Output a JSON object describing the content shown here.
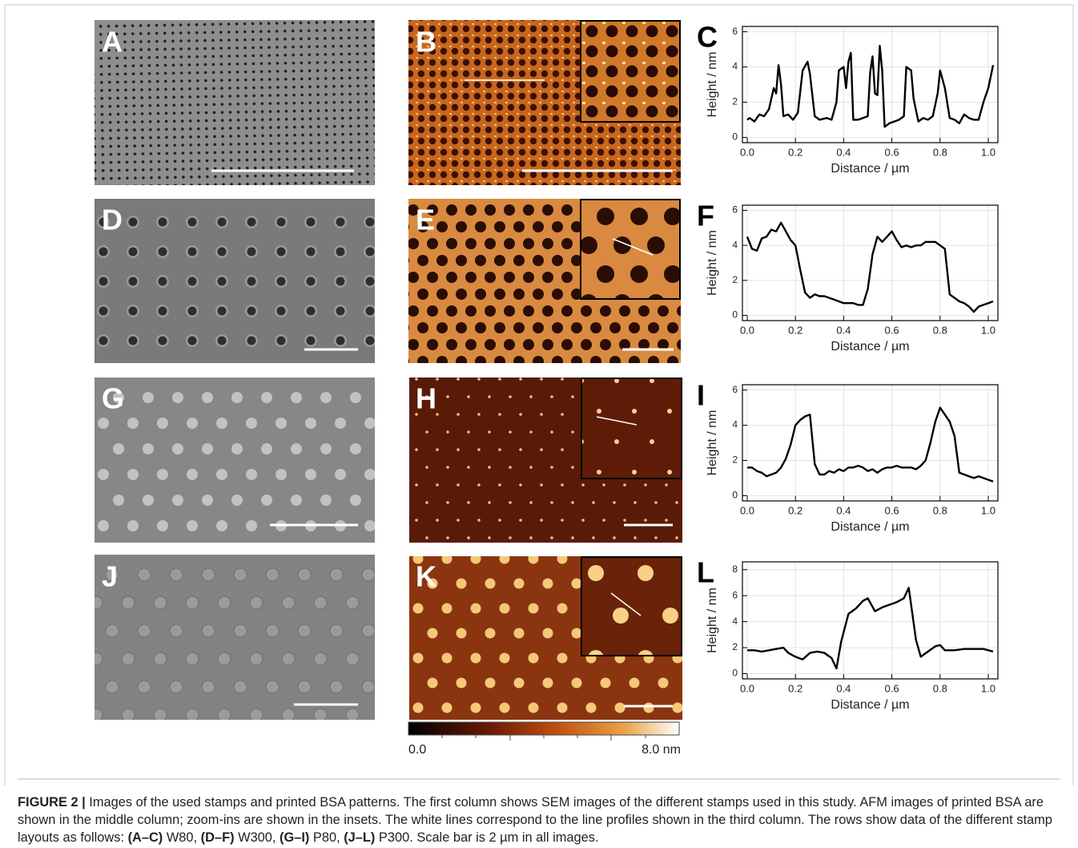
{
  "panels": [
    {
      "label": "A"
    },
    {
      "label": "B"
    },
    {
      "label": "D"
    },
    {
      "label": "E"
    },
    {
      "label": "G"
    },
    {
      "label": "H"
    },
    {
      "label": "J"
    },
    {
      "label": "K"
    }
  ],
  "colorbar": {
    "min_label": "0.0",
    "max_label": "8.0 nm"
  },
  "chart_data": [
    {
      "type": "line",
      "label": "C",
      "xlabel": "Distance / µm",
      "ylabel": "Height / nm",
      "grid": true,
      "x": [
        0,
        0.01,
        0.03,
        0.05,
        0.07,
        0.09,
        0.11,
        0.12,
        0.13,
        0.14,
        0.15,
        0.17,
        0.19,
        0.21,
        0.23,
        0.25,
        0.26,
        0.28,
        0.3,
        0.33,
        0.35,
        0.37,
        0.38,
        0.4,
        0.41,
        0.42,
        0.43,
        0.44,
        0.46,
        0.48,
        0.5,
        0.51,
        0.52,
        0.53,
        0.54,
        0.55,
        0.56,
        0.57,
        0.59,
        0.61,
        0.63,
        0.65,
        0.66,
        0.68,
        0.69,
        0.71,
        0.73,
        0.75,
        0.77,
        0.79,
        0.8,
        0.82,
        0.84,
        0.86,
        0.88,
        0.9,
        0.92,
        0.94,
        0.96,
        0.98,
        1.0,
        1.02
      ],
      "series": [
        {
          "color": "#000000",
          "values": [
            1.0,
            1.1,
            0.9,
            1.3,
            1.2,
            1.6,
            2.8,
            2.5,
            4.1,
            3.0,
            1.2,
            1.3,
            1.0,
            1.4,
            3.8,
            4.3,
            3.6,
            1.2,
            1.0,
            1.1,
            1.0,
            2.0,
            3.8,
            4.0,
            2.8,
            4.3,
            4.8,
            1.0,
            1.0,
            1.1,
            1.2,
            3.7,
            4.6,
            2.5,
            2.4,
            5.2,
            3.8,
            0.6,
            0.8,
            0.9,
            1.0,
            1.2,
            4.0,
            3.8,
            2.2,
            0.9,
            1.1,
            1.0,
            1.2,
            2.5,
            3.8,
            2.8,
            1.1,
            1.0,
            0.8,
            1.3,
            1.1,
            1.0,
            1.0,
            2.0,
            2.8,
            4.1
          ]
        }
      ],
      "xlim": [
        -0.02,
        1.04
      ],
      "ylim": [
        -0.3,
        6.3
      ],
      "xticks": [
        {
          "value": 0,
          "label": "0.0"
        },
        0.2,
        0.4,
        0.6,
        0.8,
        {
          "value": 1,
          "label": "1.0"
        }
      ],
      "yticks": [
        0,
        2,
        4,
        6
      ]
    },
    {
      "type": "line",
      "label": "F",
      "xlabel": "Distance / µm",
      "ylabel": "Height / nm",
      "grid": true,
      "x": [
        0,
        0.02,
        0.04,
        0.06,
        0.08,
        0.1,
        0.12,
        0.14,
        0.16,
        0.18,
        0.2,
        0.22,
        0.24,
        0.26,
        0.28,
        0.3,
        0.32,
        0.34,
        0.36,
        0.38,
        0.4,
        0.42,
        0.44,
        0.46,
        0.48,
        0.5,
        0.52,
        0.54,
        0.56,
        0.58,
        0.6,
        0.62,
        0.64,
        0.66,
        0.68,
        0.7,
        0.72,
        0.74,
        0.76,
        0.78,
        0.8,
        0.82,
        0.84,
        0.86,
        0.88,
        0.9,
        0.92,
        0.94,
        0.96,
        0.98,
        1.0,
        1.02
      ],
      "series": [
        {
          "color": "#000000",
          "values": [
            4.5,
            3.8,
            3.7,
            4.4,
            4.5,
            4.9,
            4.8,
            5.3,
            4.8,
            4.3,
            4.0,
            2.6,
            1.3,
            1.0,
            1.2,
            1.1,
            1.1,
            1.0,
            0.9,
            0.8,
            0.7,
            0.7,
            0.7,
            0.6,
            0.6,
            1.5,
            3.5,
            4.5,
            4.2,
            4.5,
            4.8,
            4.3,
            3.9,
            4.0,
            3.9,
            4.0,
            4.0,
            4.2,
            4.2,
            4.2,
            4.0,
            3.8,
            1.2,
            1.0,
            0.8,
            0.7,
            0.5,
            0.2,
            0.5,
            0.6,
            0.7,
            0.8
          ]
        }
      ],
      "xlim": [
        -0.02,
        1.04
      ],
      "ylim": [
        -0.3,
        6.3
      ],
      "xticks": [
        {
          "value": 0,
          "label": "0.0"
        },
        0.2,
        0.4,
        0.6,
        0.8,
        {
          "value": 1,
          "label": "1.0"
        }
      ],
      "yticks": [
        0,
        2,
        4,
        6
      ]
    },
    {
      "type": "line",
      "label": "I",
      "xlabel": "Distance / µm",
      "ylabel": "Height / nm",
      "grid": true,
      "x": [
        0,
        0.02,
        0.04,
        0.06,
        0.08,
        0.1,
        0.12,
        0.14,
        0.16,
        0.18,
        0.2,
        0.22,
        0.24,
        0.26,
        0.28,
        0.3,
        0.32,
        0.34,
        0.36,
        0.38,
        0.4,
        0.42,
        0.44,
        0.46,
        0.48,
        0.5,
        0.52,
        0.54,
        0.56,
        0.58,
        0.6,
        0.62,
        0.64,
        0.66,
        0.68,
        0.7,
        0.72,
        0.74,
        0.76,
        0.78,
        0.8,
        0.82,
        0.84,
        0.86,
        0.88,
        0.9,
        0.92,
        0.94,
        0.96,
        0.98,
        1.0,
        1.02
      ],
      "series": [
        {
          "color": "#000000",
          "values": [
            1.6,
            1.6,
            1.4,
            1.3,
            1.1,
            1.2,
            1.3,
            1.6,
            2.1,
            2.9,
            4.0,
            4.3,
            4.5,
            4.6,
            1.8,
            1.2,
            1.2,
            1.4,
            1.3,
            1.5,
            1.4,
            1.6,
            1.6,
            1.7,
            1.6,
            1.4,
            1.5,
            1.3,
            1.5,
            1.6,
            1.6,
            1.7,
            1.6,
            1.6,
            1.6,
            1.5,
            1.7,
            2.0,
            3.0,
            4.2,
            5.0,
            4.6,
            4.2,
            3.4,
            1.3,
            1.2,
            1.1,
            1.0,
            1.1,
            1.0,
            0.9,
            0.8
          ]
        }
      ],
      "xlim": [
        -0.02,
        1.04
      ],
      "ylim": [
        -0.3,
        6.3
      ],
      "xticks": [
        {
          "value": 0,
          "label": "0.0"
        },
        0.2,
        0.4,
        0.6,
        0.8,
        {
          "value": 1,
          "label": "1.0"
        }
      ],
      "yticks": [
        0,
        2,
        4,
        6
      ]
    },
    {
      "type": "line",
      "label": "L",
      "xlabel": "Distance / µm",
      "ylabel": "Height / nm",
      "grid": true,
      "x": [
        0,
        0.03,
        0.06,
        0.09,
        0.12,
        0.15,
        0.17,
        0.2,
        0.23,
        0.26,
        0.29,
        0.32,
        0.35,
        0.37,
        0.39,
        0.42,
        0.45,
        0.48,
        0.5,
        0.53,
        0.56,
        0.59,
        0.62,
        0.65,
        0.67,
        0.7,
        0.72,
        0.75,
        0.78,
        0.8,
        0.82,
        0.86,
        0.9,
        0.94,
        0.98,
        1.02
      ],
      "series": [
        {
          "color": "#000000",
          "values": [
            1.8,
            1.8,
            1.7,
            1.8,
            1.9,
            2.0,
            1.6,
            1.3,
            1.1,
            1.6,
            1.7,
            1.6,
            1.2,
            0.4,
            2.5,
            4.6,
            5.0,
            5.6,
            5.8,
            4.8,
            5.1,
            5.3,
            5.5,
            5.8,
            6.6,
            2.6,
            1.3,
            1.7,
            2.1,
            2.2,
            1.8,
            1.8,
            1.9,
            1.9,
            1.9,
            1.7
          ]
        }
      ],
      "xlim": [
        -0.02,
        1.04
      ],
      "ylim": [
        -0.4,
        8.6
      ],
      "xticks": [
        {
          "value": 0,
          "label": "0.0"
        },
        0.2,
        0.4,
        0.6,
        0.8,
        {
          "value": 1,
          "label": "1.0"
        }
      ],
      "yticks": [
        0,
        2,
        4,
        6,
        8
      ]
    }
  ],
  "caption": {
    "label": "FIGURE 2 |",
    "segments": [
      {
        "text": " Images of the used stamps and printed BSA patterns. The first column shows SEM images of the different stamps used in this study. AFM images of printed BSA are shown in the middle column; zoom-ins are shown in the insets. The white lines correspond to the line profiles shown in the third column. The rows show data of the different stamp layouts as follows: ",
        "bold": false
      },
      {
        "text": "(A–C)",
        "bold": true
      },
      {
        "text": " W80, ",
        "bold": false
      },
      {
        "text": "(D–F)",
        "bold": true
      },
      {
        "text": " W300, ",
        "bold": false
      },
      {
        "text": "(G–I)",
        "bold": true
      },
      {
        "text": " P80, ",
        "bold": false
      },
      {
        "text": "(J–L)",
        "bold": true
      },
      {
        "text": " P300. Scale bar is 2 µm in all images.",
        "bold": false
      }
    ]
  }
}
